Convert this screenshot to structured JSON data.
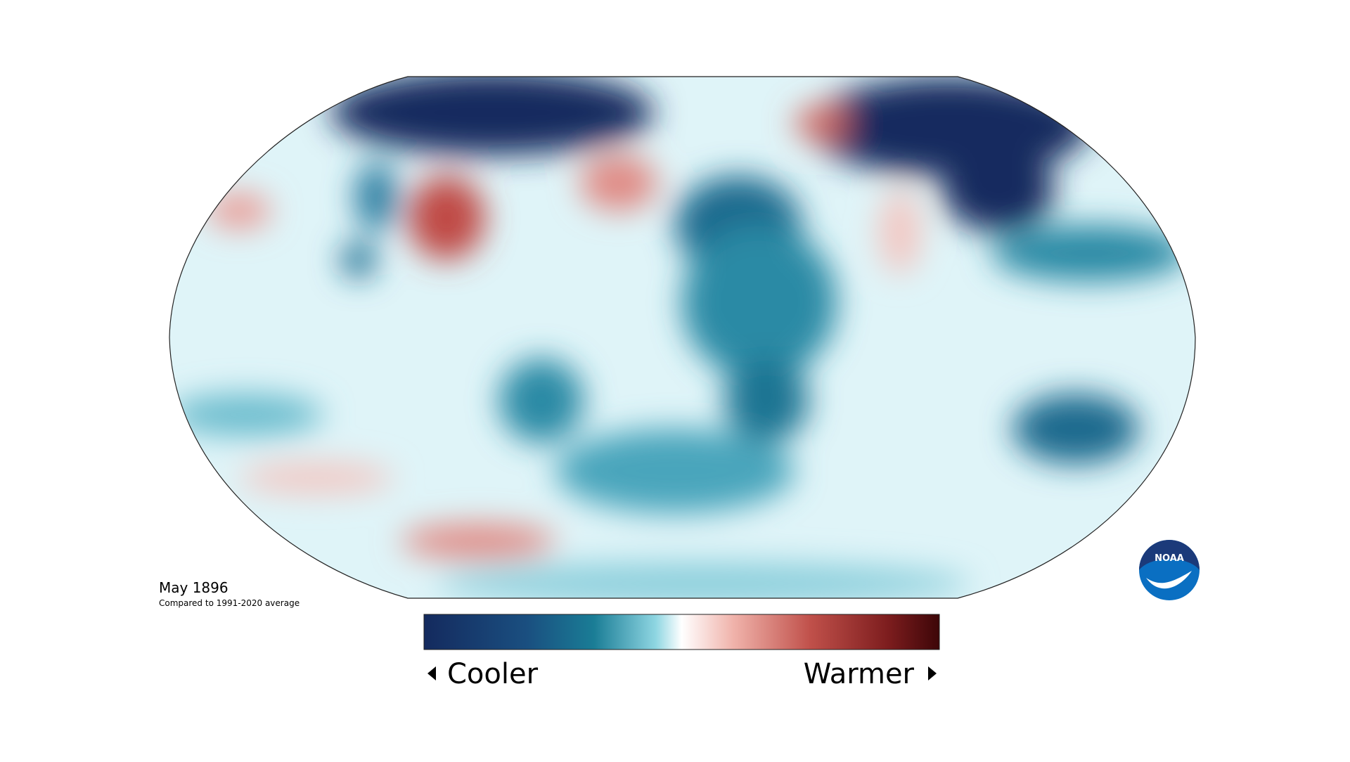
{
  "map": {
    "period": "May 1896",
    "baseline": "Compared to 1991-2020 average"
  },
  "legend": {
    "low": "Cooler",
    "high": "Warmer"
  },
  "logo": {
    "text": "NOAA"
  }
}
